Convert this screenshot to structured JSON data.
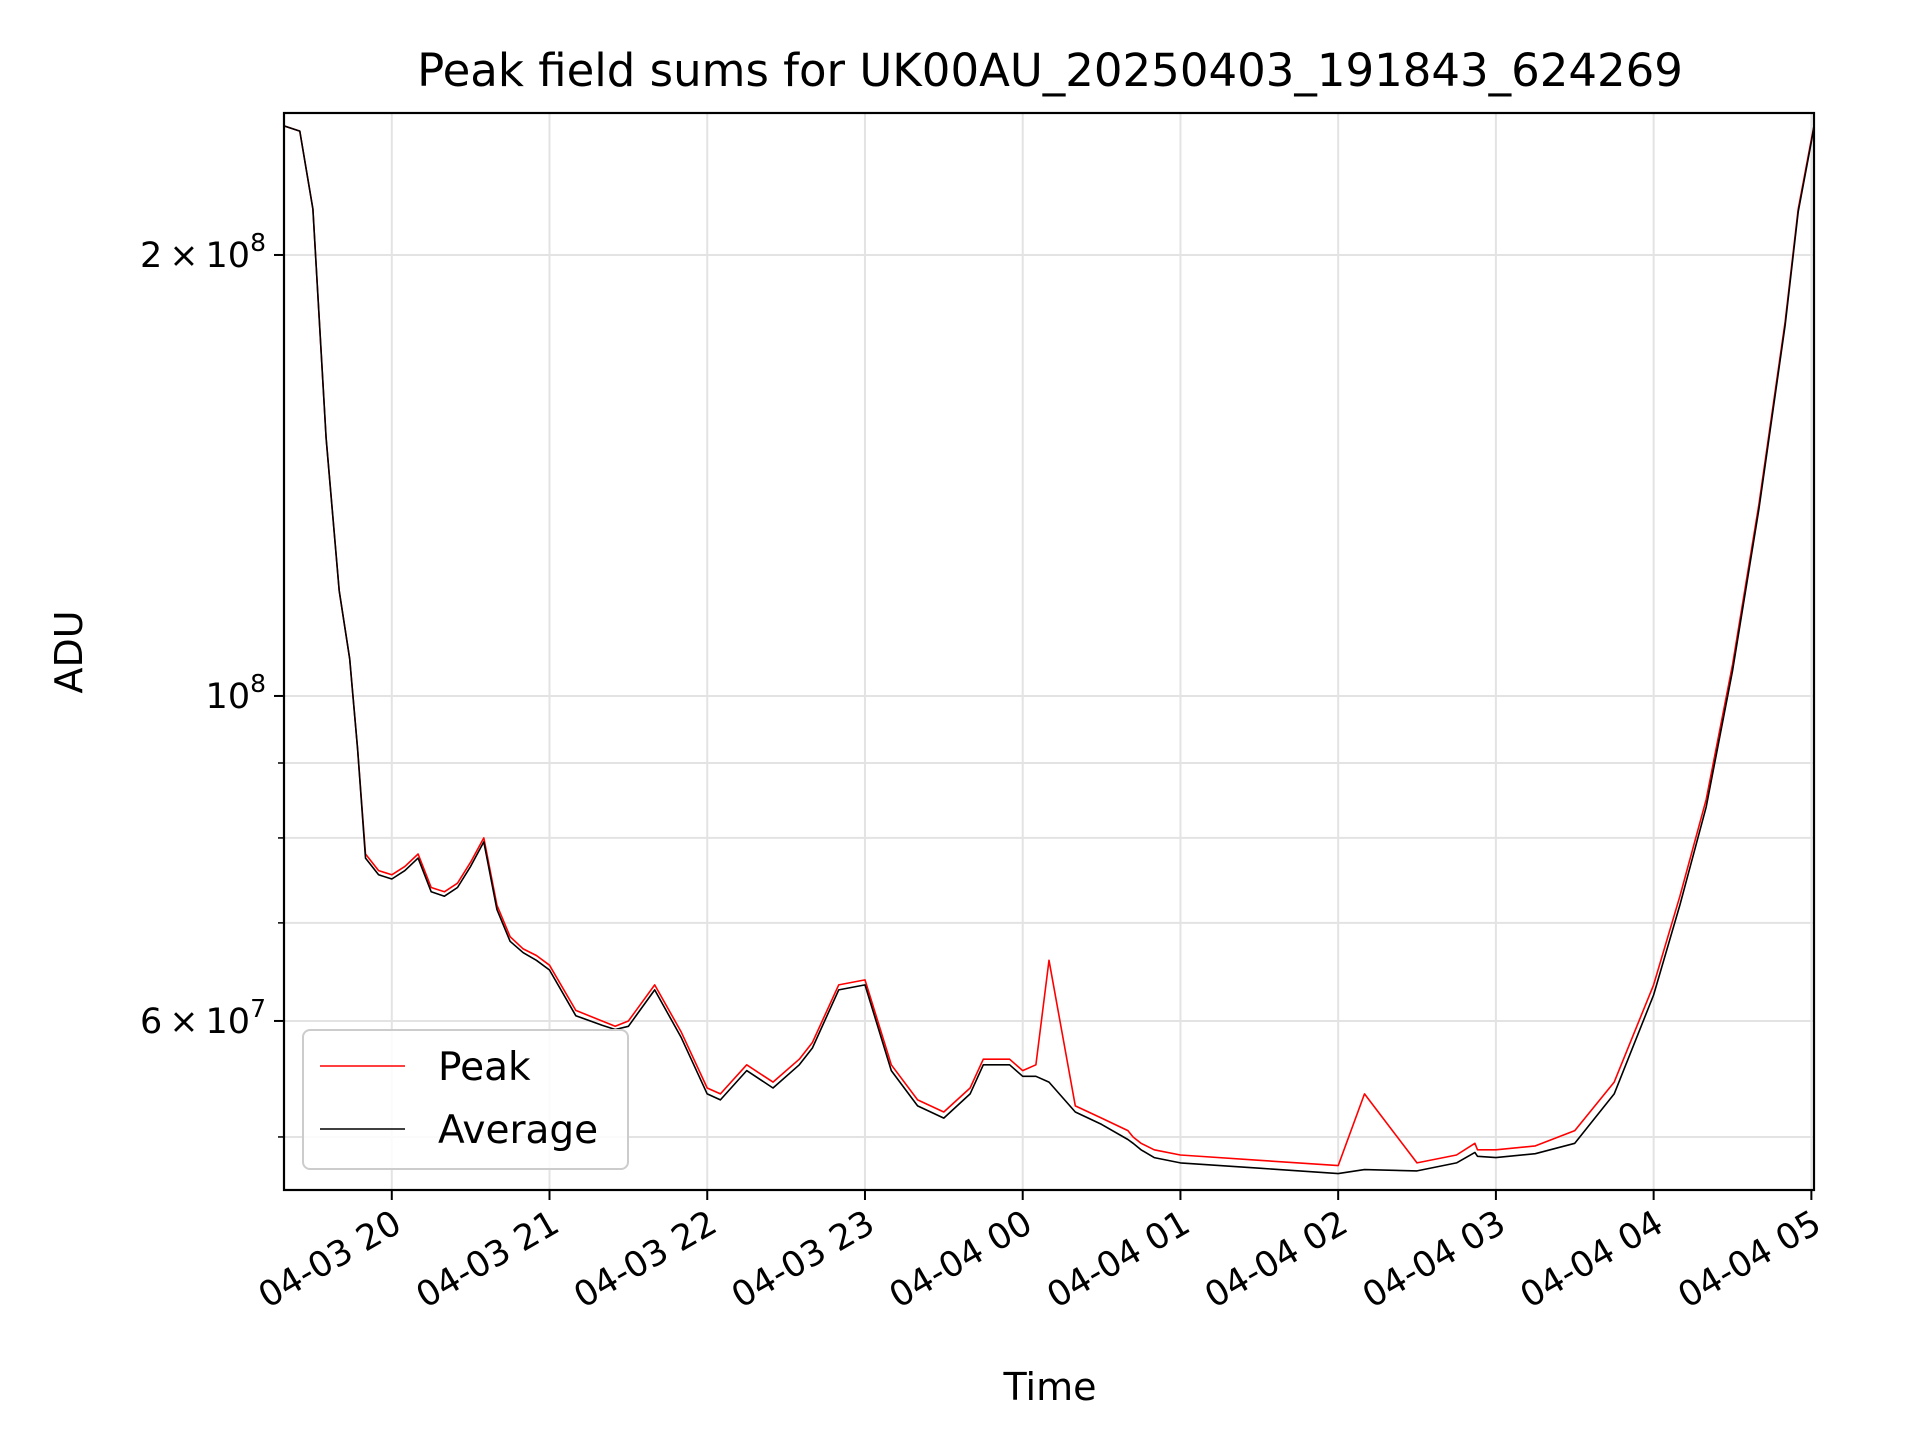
{
  "chart_data": {
    "type": "line",
    "title": "Peak field sums for UK00AU_20250403_191843_624269",
    "xlabel": "Time",
    "ylabel": "ADU",
    "y_scale": "log",
    "ylim": [
      46000000,
      250000000
    ],
    "xlim": [
      "04-03 19:19",
      "04-04 05:01"
    ],
    "grid": true,
    "legend_position": "lower-left",
    "x_ticks": [
      "04-03 20",
      "04-03 21",
      "04-03 22",
      "04-03 23",
      "04-04 00",
      "04-04 01",
      "04-04 02",
      "04-04 03",
      "04-04 04",
      "04-04 05"
    ],
    "y_ticks": [
      {
        "value": 200000000,
        "mantissa": "2",
        "exponent": "8"
      },
      {
        "value": 100000000,
        "mantissa": "10",
        "exponent": "8"
      },
      {
        "value": 60000000,
        "mantissa": "6",
        "exponent": "7"
      }
    ],
    "series": [
      {
        "name": "Peak",
        "color": "#ff0000",
        "x": [
          "04-03 19:19",
          "04-03 19:25",
          "04-03 19:30",
          "04-03 19:35",
          "04-03 19:40",
          "04-03 19:44",
          "04-03 19:47",
          "04-03 19:50",
          "04-03 19:55",
          "04-03 20:00",
          "04-03 20:05",
          "04-03 20:10",
          "04-03 20:15",
          "04-03 20:20",
          "04-03 20:25",
          "04-03 20:30",
          "04-03 20:35",
          "04-03 20:40",
          "04-03 20:45",
          "04-03 20:50",
          "04-03 20:55",
          "04-03 21:00",
          "04-03 21:10",
          "04-03 21:20",
          "04-03 21:25",
          "04-03 21:30",
          "04-03 21:40",
          "04-03 21:50",
          "04-03 22:00",
          "04-03 22:05",
          "04-03 22:15",
          "04-03 22:25",
          "04-03 22:35",
          "04-03 22:40",
          "04-03 22:50",
          "04-03 23:00",
          "04-03 23:10",
          "04-03 23:20",
          "04-03 23:30",
          "04-03 23:40",
          "04-03 23:45",
          "04-03 23:55",
          "04-04 00:00",
          "04-04 00:05",
          "04-04 00:10",
          "04-04 00:20",
          "04-04 00:30",
          "04-04 00:40",
          "04-04 00:42",
          "04-04 00:45",
          "04-04 00:50",
          "04-04 01:00",
          "04-04 01:30",
          "04-04 02:00",
          "04-04 02:10",
          "04-04 02:30",
          "04-04 02:45",
          "04-04 02:52",
          "04-04 02:53",
          "04-04 03:00",
          "04-04 03:15",
          "04-04 03:30",
          "04-04 03:45",
          "04-04 04:00",
          "04-04 04:10",
          "04-04 04:20",
          "04-04 04:30",
          "04-04 04:40",
          "04-04 04:50",
          "04-04 04:55",
          "04-04 05:00",
          "04-04 05:01"
        ],
        "y": [
          245000000,
          243000000,
          215000000,
          150000000,
          118000000,
          106000000,
          92000000,
          78000000,
          76000000,
          75500000,
          76500000,
          78000000,
          74000000,
          73500000,
          74500000,
          77000000,
          80000000,
          72000000,
          68500000,
          67200000,
          66500000,
          65500000,
          61000000,
          60000000,
          59500000,
          60000000,
          63500000,
          59000000,
          54000000,
          53500000,
          56000000,
          54500000,
          56500000,
          58000000,
          63500000,
          64000000,
          56000000,
          53000000,
          52000000,
          54000000,
          56500000,
          56500000,
          55500000,
          56000000,
          66000000,
          52500000,
          51500000,
          50500000,
          50000000,
          49500000,
          49000000,
          48600000,
          48200000,
          47800000,
          53500000,
          48000000,
          48600000,
          49500000,
          49000000,
          49000000,
          49300000,
          50500000,
          54500000,
          63500000,
          73000000,
          85000000,
          105000000,
          135000000,
          180000000,
          215000000,
          240000000,
          245000000
        ]
      },
      {
        "name": "Average",
        "color": "#000000",
        "x": [
          "04-03 19:19",
          "04-03 19:25",
          "04-03 19:30",
          "04-03 19:35",
          "04-03 19:40",
          "04-03 19:44",
          "04-03 19:47",
          "04-03 19:50",
          "04-03 19:55",
          "04-03 20:00",
          "04-03 20:05",
          "04-03 20:10",
          "04-03 20:15",
          "04-03 20:20",
          "04-03 20:25",
          "04-03 20:30",
          "04-03 20:35",
          "04-03 20:40",
          "04-03 20:45",
          "04-03 20:50",
          "04-03 20:55",
          "04-03 21:00",
          "04-03 21:10",
          "04-03 21:20",
          "04-03 21:25",
          "04-03 21:30",
          "04-03 21:40",
          "04-03 21:50",
          "04-03 22:00",
          "04-03 22:05",
          "04-03 22:15",
          "04-03 22:25",
          "04-03 22:35",
          "04-03 22:40",
          "04-03 22:50",
          "04-03 23:00",
          "04-03 23:10",
          "04-03 23:20",
          "04-03 23:30",
          "04-03 23:40",
          "04-03 23:45",
          "04-03 23:55",
          "04-04 00:00",
          "04-04 00:05",
          "04-04 00:10",
          "04-04 00:20",
          "04-04 00:30",
          "04-04 00:40",
          "04-04 00:42",
          "04-04 00:45",
          "04-04 00:50",
          "04-04 01:00",
          "04-04 01:30",
          "04-04 02:00",
          "04-04 02:10",
          "04-04 02:30",
          "04-04 02:45",
          "04-04 02:52",
          "04-04 02:53",
          "04-04 03:00",
          "04-04 03:15",
          "04-04 03:30",
          "04-04 03:45",
          "04-04 04:00",
          "04-04 04:10",
          "04-04 04:20",
          "04-04 04:30",
          "04-04 04:40",
          "04-04 04:50",
          "04-04 04:55",
          "04-04 05:00",
          "04-04 05:01"
        ],
        "y": [
          245000000,
          243000000,
          215000000,
          150000000,
          118000000,
          106000000,
          92000000,
          77500000,
          75500000,
          75000000,
          76000000,
          77500000,
          73500000,
          73000000,
          74000000,
          76500000,
          79500000,
          71500000,
          68000000,
          66800000,
          66000000,
          65000000,
          60500000,
          59600000,
          59200000,
          59500000,
          63000000,
          58500000,
          53500000,
          53000000,
          55500000,
          54000000,
          56000000,
          57500000,
          63000000,
          63500000,
          55500000,
          52500000,
          51500000,
          53500000,
          56000000,
          56000000,
          55000000,
          55000000,
          54500000,
          52000000,
          51000000,
          49800000,
          49500000,
          49000000,
          48400000,
          48000000,
          47600000,
          47200000,
          47500000,
          47400000,
          48000000,
          48800000,
          48500000,
          48400000,
          48700000,
          49500000,
          53500000,
          62500000,
          72000000,
          84000000,
          104000000,
          134000000,
          179000000,
          214000000,
          239000000,
          245000000
        ]
      }
    ]
  }
}
